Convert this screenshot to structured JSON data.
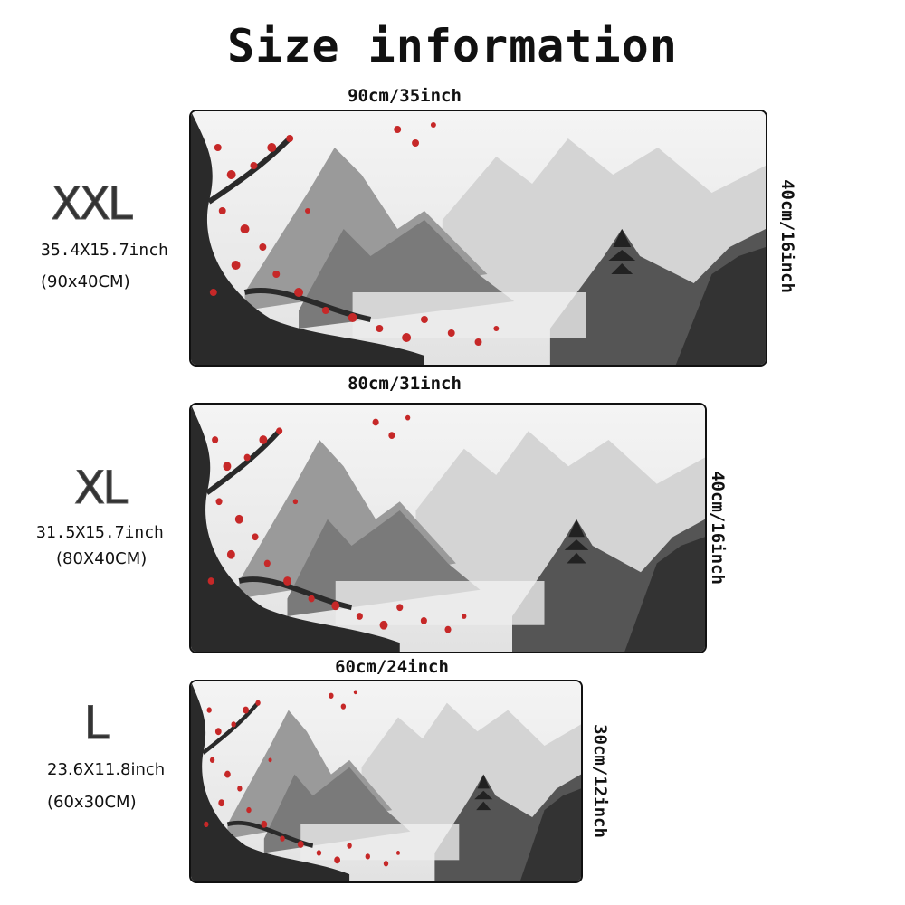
{
  "title": "Size information",
  "sizes": [
    {
      "name": "XXL",
      "inches": "35.4X15.7inch",
      "cm": "(90x40CM)",
      "width": "90cm/35inch",
      "height": "40cm/16inch"
    },
    {
      "name": "XL",
      "inches": "31.5X15.7inch",
      "cm": "(80X40CM)",
      "width": "80cm/31inch",
      "height": "40cm/16inch"
    },
    {
      "name": "L",
      "inches": "23.6X11.8inch",
      "cm": "(60x30CM)",
      "width": "60cm/24inch",
      "height": "30cm/12inch"
    }
  ]
}
